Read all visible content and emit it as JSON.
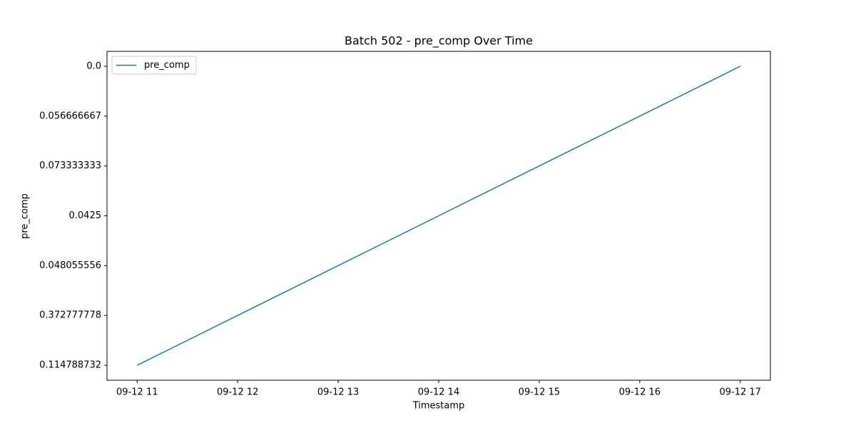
{
  "chart_data": {
    "type": "line",
    "title": "Batch 502 - pre_comp Over Time",
    "x_label": "Timestamp",
    "y_label": "pre_comp",
    "x": [
      "09-12 11",
      "09-12 12",
      "09-12 13",
      "09-12 14",
      "09-12 15",
      "09-12 16",
      "09-12 17"
    ],
    "y_categories": [
      "0.114788732",
      "0.372777778",
      "0.048055556",
      "0.0425",
      "0.073333333",
      "0.056666667",
      "0.0"
    ],
    "series": [
      {
        "name": "pre_comp",
        "color": "#1f77b4",
        "values": [
          "0.114788732",
          "0.372777778",
          "0.048055556",
          "0.0425",
          "0.073333333",
          "0.056666667",
          "0.0"
        ]
      }
    ],
    "legend": "upper left",
    "grid": false
  }
}
